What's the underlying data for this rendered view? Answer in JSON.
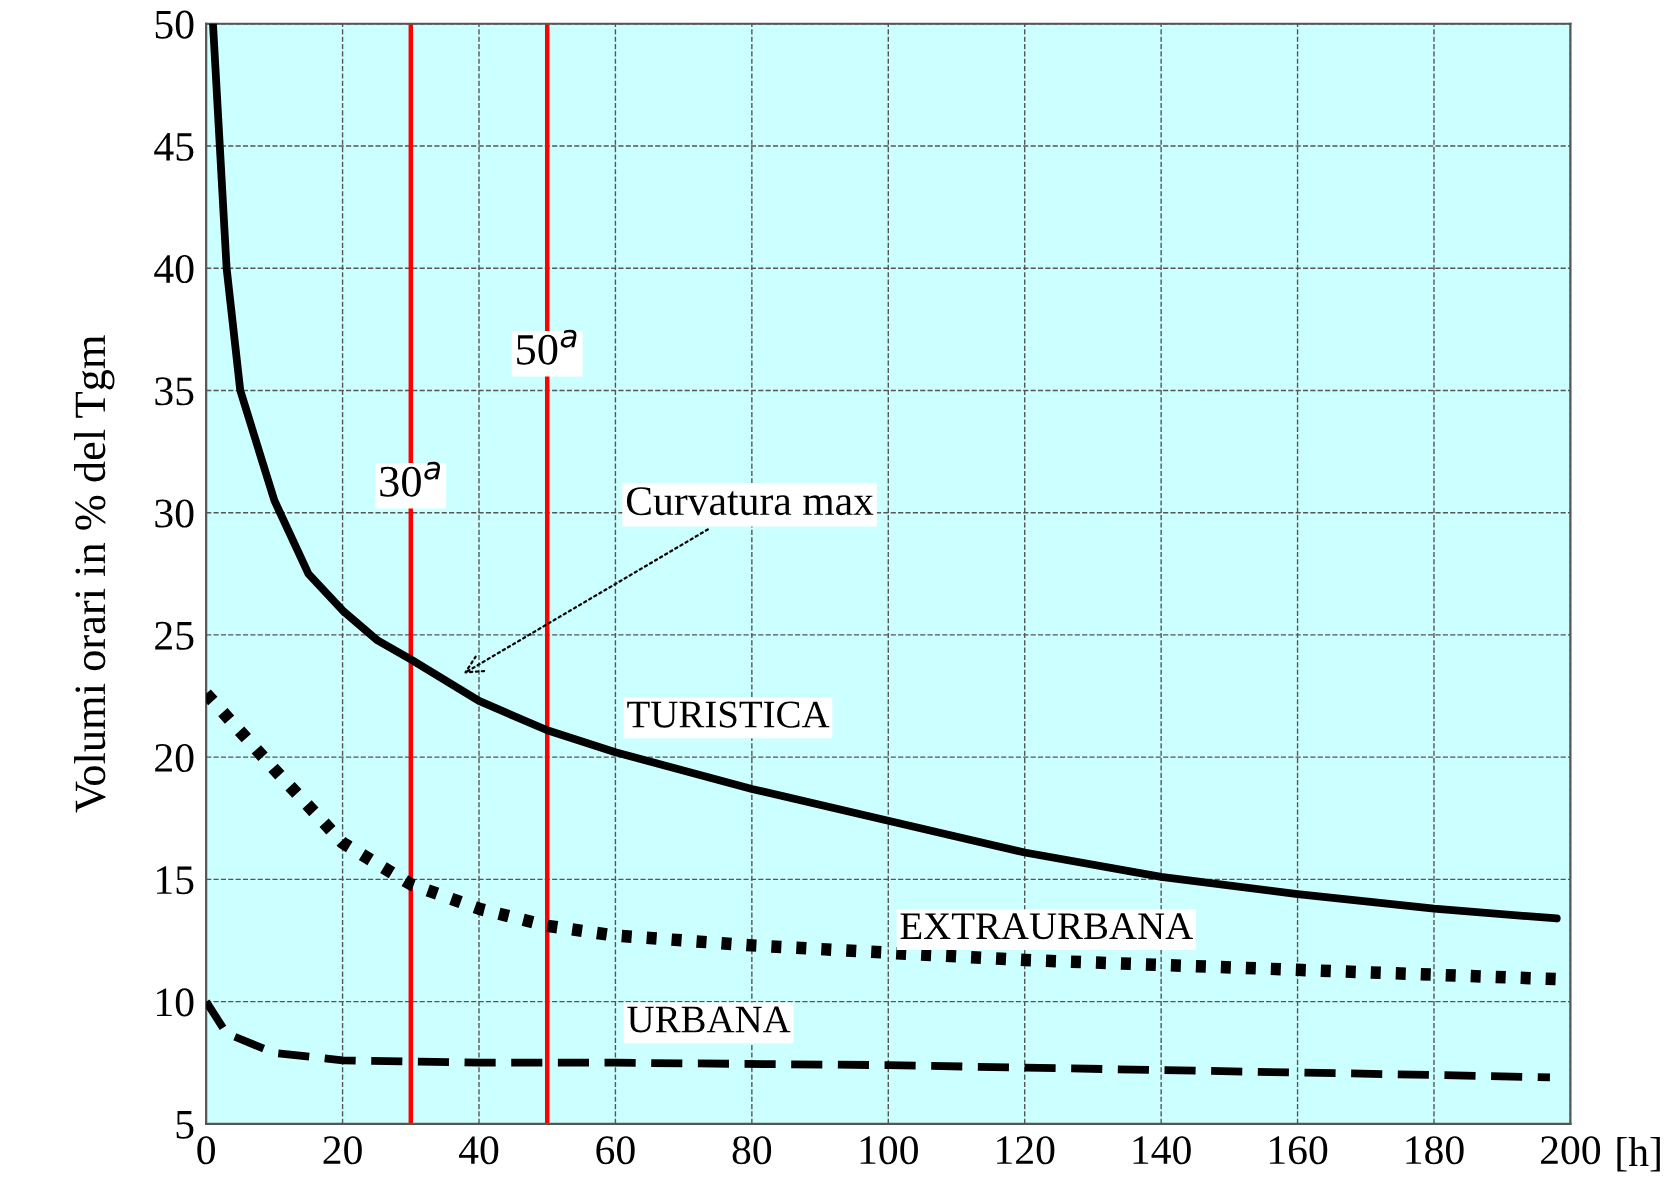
{
  "chart_data": {
    "type": "line",
    "xlabel": "[h]",
    "ylabel": "Volumi orari in % del Tgm",
    "xlim": [
      0,
      200
    ],
    "ylim": [
      5,
      50
    ],
    "xticks": [
      0,
      20,
      40,
      60,
      80,
      100,
      120,
      140,
      160,
      180,
      200
    ],
    "yticks": [
      5,
      10,
      15,
      20,
      25,
      30,
      35,
      40,
      45,
      50
    ],
    "grid": true,
    "legend": false,
    "series": [
      {
        "name": "TURISTICA",
        "color": "#000000",
        "line_style": "solid",
        "x": [
          1,
          2,
          3,
          5,
          10,
          15,
          20,
          25,
          30,
          40,
          50,
          60,
          80,
          100,
          120,
          140,
          160,
          180,
          198
        ],
        "values": [
          50,
          45,
          40,
          35,
          30.5,
          27.5,
          26,
          24.8,
          24,
          22.3,
          21.1,
          20.2,
          18.7,
          17.4,
          16.1,
          15.1,
          14.4,
          13.8,
          13.4
        ]
      },
      {
        "name": "EXTRAURBANA",
        "color": "#000000",
        "line_style": "dotted",
        "x": [
          0,
          10,
          20,
          30,
          40,
          50,
          60,
          80,
          100,
          120,
          140,
          160,
          180,
          200
        ],
        "values": [
          22.6,
          19.5,
          16.5,
          14.8,
          13.8,
          13.1,
          12.7,
          12.3,
          12.0,
          11.7,
          11.5,
          11.3,
          11.1,
          10.9
        ]
      },
      {
        "name": "URBANA",
        "color": "#000000",
        "line_style": "dashed",
        "x": [
          0,
          3,
          10,
          20,
          40,
          60,
          100,
          140,
          180,
          197
        ],
        "values": [
          10,
          8.7,
          7.9,
          7.6,
          7.5,
          7.5,
          7.4,
          7.2,
          7.0,
          6.9
        ]
      }
    ],
    "ref_lines": [
      {
        "axis": "x",
        "value": 30,
        "label": "30$^{a}$",
        "color": "#ff0000"
      },
      {
        "axis": "x",
        "value": 50,
        "label": "50$^{a}$",
        "color": "#ff0000"
      }
    ],
    "annotations": [
      {
        "text": "Curvatura max",
        "x": 37,
        "y": 23.3
      }
    ]
  }
}
